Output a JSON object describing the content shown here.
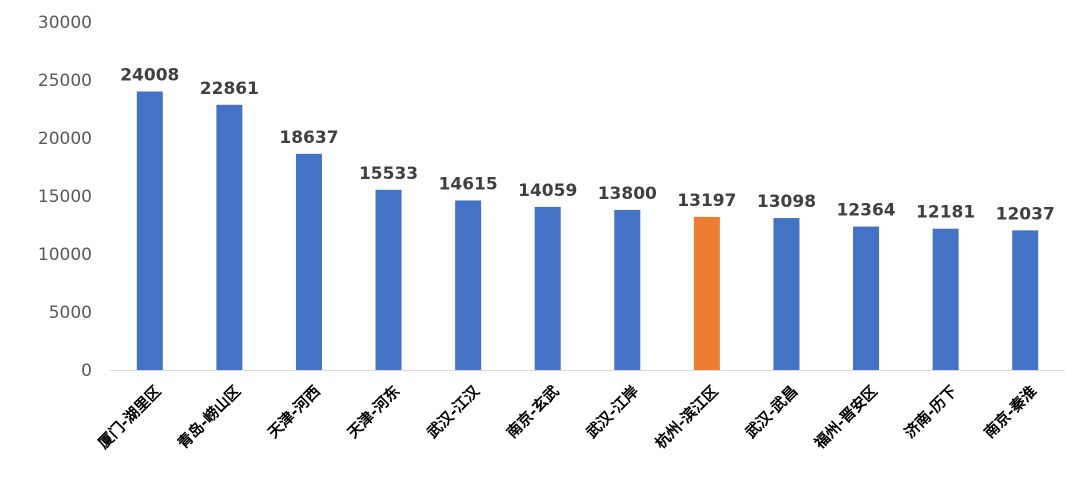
{
  "chart_data": {
    "type": "bar",
    "categories": [
      "厦门-湖里区",
      "青岛-崂山区",
      "天津-河西",
      "天津-河东",
      "武汉-江汉",
      "南京-玄武",
      "武汉-江岸",
      "杭州-滨江区",
      "武汉-武昌",
      "福州-晋安区",
      "济南-历下",
      "南京-秦淮"
    ],
    "values": [
      24008,
      22861,
      18637,
      15533,
      14615,
      14059,
      13800,
      13197,
      13098,
      12364,
      12181,
      12037
    ],
    "highlight_index": 7,
    "ylim": [
      0,
      30000
    ],
    "yticks": [
      0,
      5000,
      10000,
      15000,
      20000,
      25000,
      30000
    ],
    "grid": false,
    "colors": {
      "default": "#4472c4",
      "highlight": "#ed7d31"
    },
    "title": "",
    "xlabel": "",
    "ylabel": ""
  }
}
